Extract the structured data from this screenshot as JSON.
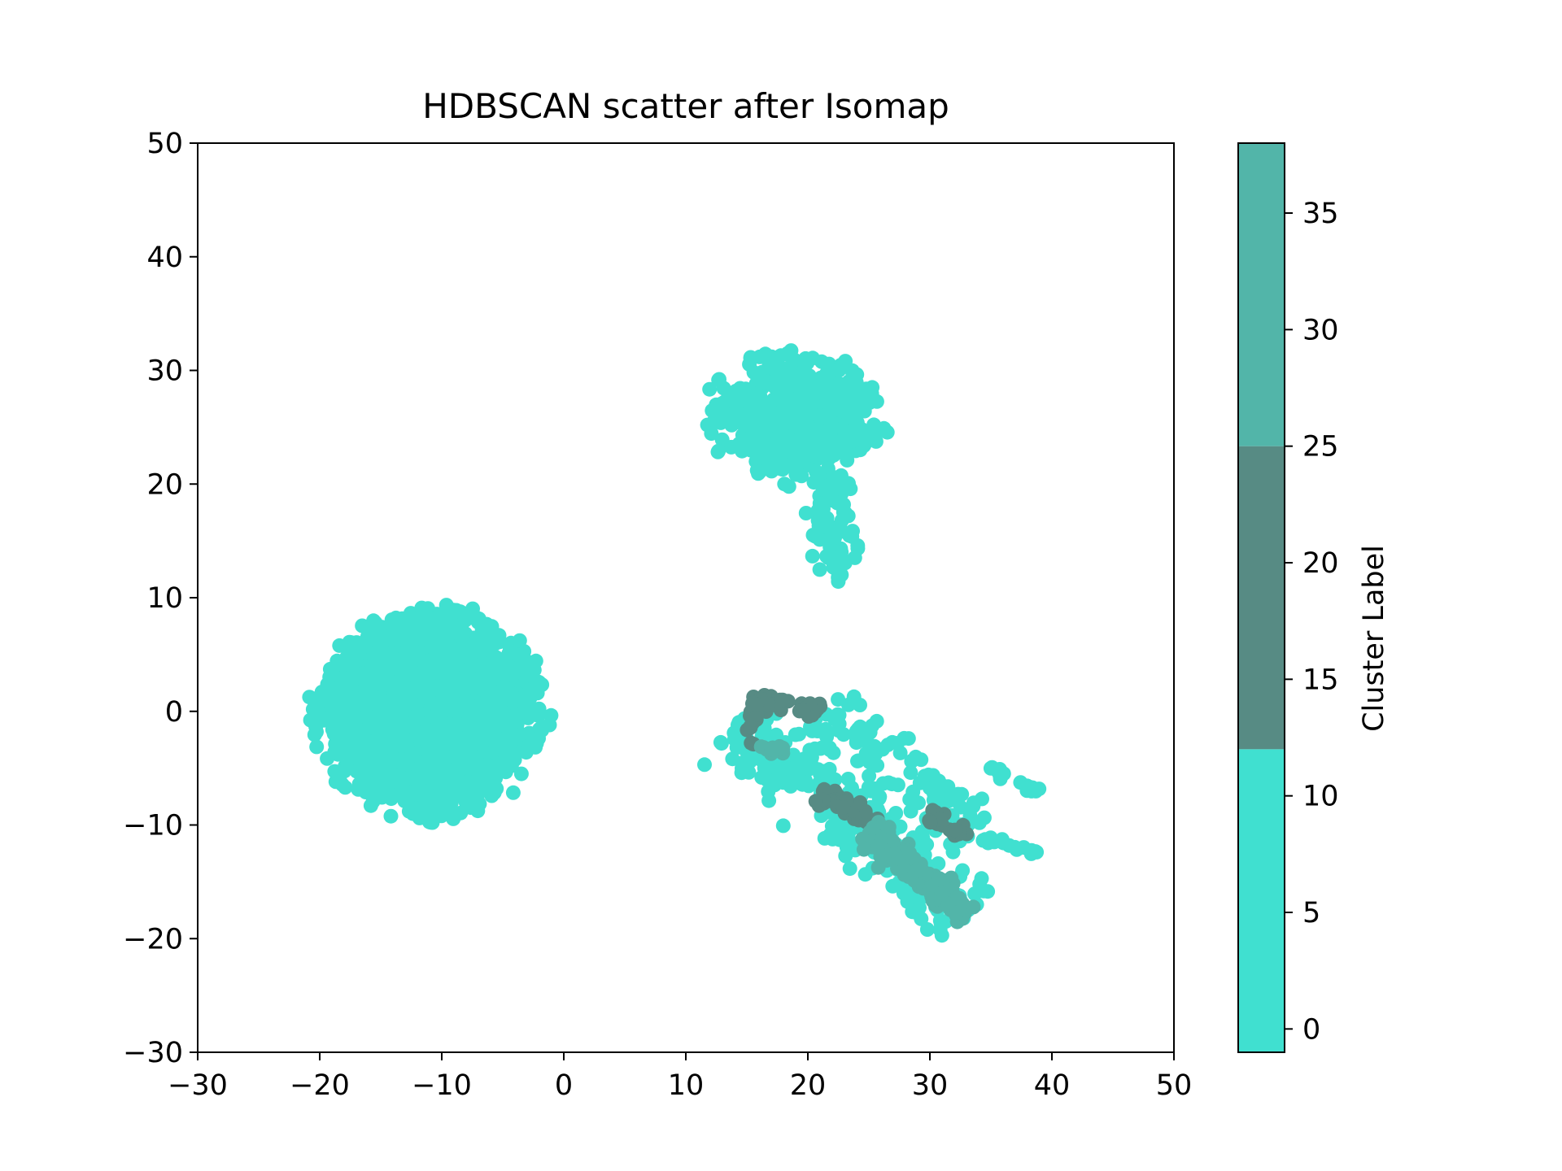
{
  "chart_data": {
    "type": "scatter",
    "title": "HDBSCAN scatter after Isomap",
    "xlim": [
      -30,
      50
    ],
    "ylim": [
      -30,
      50
    ],
    "xticks": [
      -30,
      -20,
      -10,
      0,
      10,
      20,
      30,
      40,
      50
    ],
    "yticks": [
      -30,
      -20,
      -10,
      0,
      10,
      20,
      30,
      40,
      50
    ],
    "xtick_labels": [
      "−30",
      "−20",
      "−10",
      "0",
      "10",
      "20",
      "30",
      "40",
      "50"
    ],
    "ytick_labels": [
      "−30",
      "−20",
      "−10",
      "0",
      "10",
      "20",
      "30",
      "40",
      "50"
    ],
    "grid": false,
    "marker_color_default": "#40E0D0",
    "clusters": [
      {
        "label": 0,
        "color": "#40E0D0",
        "shape": "ellipse",
        "center": [
          -11,
          0
        ],
        "spread": [
          7,
          7
        ],
        "n": 2200,
        "seed": 11
      },
      {
        "label": 0,
        "color": "#40E0D0",
        "shape": "ellipse",
        "center": [
          19,
          26
        ],
        "spread": [
          5.5,
          4.5
        ],
        "n": 550,
        "seed": 23
      },
      {
        "label": 0,
        "color": "#40E0D0",
        "shape": "ellipse",
        "center": [
          22,
          16
        ],
        "spread": [
          1.8,
          4
        ],
        "n": 80,
        "seed": 37
      },
      {
        "label": 0,
        "color": "#40E0D0",
        "shape": "band",
        "from": [
          14,
          -1
        ],
        "to": [
          33,
          -18
        ],
        "width": 3.5,
        "n": 260,
        "seed": 41
      },
      {
        "label": 0,
        "color": "#40E0D0",
        "shape": "band",
        "from": [
          21,
          0
        ],
        "to": [
          34,
          -10
        ],
        "width": 2.5,
        "n": 110,
        "seed": 53
      },
      {
        "label": 0,
        "color": "#40E0D0",
        "shape": "band",
        "from": [
          35,
          -5
        ],
        "to": [
          39,
          -7
        ],
        "width": 0.4,
        "n": 20,
        "seed": 59
      },
      {
        "label": 0,
        "color": "#40E0D0",
        "shape": "band",
        "from": [
          34,
          -11
        ],
        "to": [
          39,
          -12.5
        ],
        "width": 0.4,
        "n": 16,
        "seed": 61
      },
      {
        "label": 20,
        "color": "#578B84",
        "shape": "band",
        "from": [
          15.5,
          1
        ],
        "to": [
          21,
          0
        ],
        "width": 0.7,
        "n": 40,
        "seed": 67
      },
      {
        "label": 20,
        "color": "#578B84",
        "shape": "band",
        "from": [
          15.5,
          1
        ],
        "to": [
          15.5,
          -3
        ],
        "width": 0.5,
        "n": 16,
        "seed": 71
      },
      {
        "label": 20,
        "color": "#578B84",
        "shape": "band",
        "from": [
          21,
          -7
        ],
        "to": [
          26,
          -10
        ],
        "width": 0.9,
        "n": 40,
        "seed": 73
      },
      {
        "label": 20,
        "color": "#578B84",
        "shape": "band",
        "from": [
          30,
          -9
        ],
        "to": [
          33,
          -11
        ],
        "width": 0.6,
        "n": 24,
        "seed": 79
      },
      {
        "label": 30,
        "color": "#52B5A9",
        "shape": "band",
        "from": [
          25,
          -10.5
        ],
        "to": [
          33,
          -18
        ],
        "width": 1.1,
        "n": 170,
        "seed": 83
      },
      {
        "label": 30,
        "color": "#52B5A9",
        "shape": "band",
        "from": [
          15.5,
          -3
        ],
        "to": [
          18,
          -3.5
        ],
        "width": 0.5,
        "n": 14,
        "seed": 89
      }
    ],
    "colorbar": {
      "label": "Cluster Label",
      "range": [
        -1,
        38
      ],
      "ticks": [
        0,
        5,
        10,
        15,
        20,
        25,
        30,
        35
      ],
      "tick_labels": [
        "0",
        "5",
        "10",
        "15",
        "20",
        "25",
        "30",
        "35"
      ],
      "bands": [
        {
          "from": -1,
          "to": 12,
          "color": "#40E0D0"
        },
        {
          "from": 12,
          "to": 25,
          "color": "#578B84"
        },
        {
          "from": 25,
          "to": 38,
          "color": "#52B5A9"
        }
      ]
    }
  }
}
